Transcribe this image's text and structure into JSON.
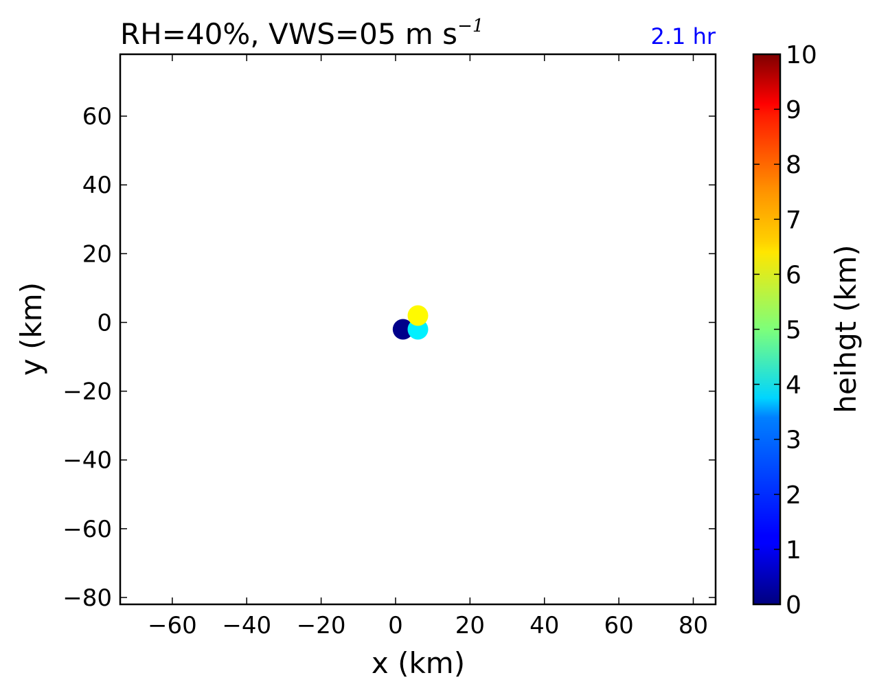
{
  "chart_data": {
    "type": "scatter",
    "title": "RH=40%, VWS=05 m s",
    "title_superscript": "−1",
    "title_right": "2.1 hr",
    "title_right_color": "#0000ff",
    "xlabel": "x (km)",
    "ylabel": "y (km)",
    "xlim": [
      -74,
      86
    ],
    "ylim": [
      -82,
      78
    ],
    "xticks": [
      -60,
      -40,
      -20,
      0,
      20,
      40,
      60,
      80
    ],
    "yticks": [
      60,
      40,
      20,
      0,
      -20,
      -40,
      -60,
      -80
    ],
    "points": [
      {
        "x": 2,
        "y": -2,
        "height": 0.1
      },
      {
        "x": 6,
        "y": -2,
        "height": 3.6
      },
      {
        "x": 6,
        "y": 2,
        "height": 6.3
      }
    ],
    "colorbar": {
      "label": "heihgt (km)",
      "range": [
        0,
        10
      ],
      "ticks": [
        0,
        1,
        2,
        3,
        4,
        5,
        6,
        7,
        8,
        9,
        10
      ],
      "colormap": "jet"
    },
    "grid": false
  }
}
